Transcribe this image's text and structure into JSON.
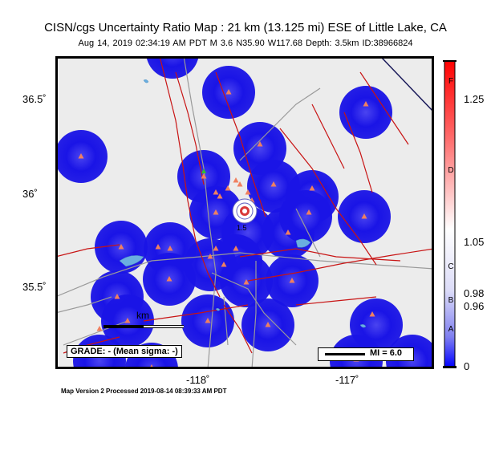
{
  "title": "CISN/cgs Uncertainty Ratio Map : 21 km (13.125 mi) ESE of Little Lake, CA",
  "subtitle": "Aug 14, 2019 02:34:19 AM PDT   M 3.6   N35.90 W117.68   Depth: 3.5km   ID:38966824",
  "footer": "Map Version 2 Processed 2019-08-14 08:39:33 AM PDT",
  "latitude_labels": [
    "36.5˚",
    "36˚",
    "35.5˚"
  ],
  "longitude_labels": [
    "-118˚",
    "-117˚"
  ],
  "colorbar": {
    "tick_labels": [
      "1.25",
      "1.05",
      "0.98",
      "0.96",
      "0"
    ],
    "grade_letters": [
      "F",
      "D",
      "C",
      "B",
      "A"
    ],
    "colors": {
      "top": "#ff0000",
      "mid": "#ffffff",
      "bottom": "#0000ff"
    }
  },
  "grade_label": "GRADE: - (Mean sigma: -)",
  "mi_legend": "MI = 6.0",
  "scale_label": "km",
  "contour_label": "1.5",
  "colors": {
    "land": "#ececec",
    "uncertainty_blue": "#1a14e6",
    "fault": "#c81414",
    "road": "#9a9a9a",
    "station": "#f08060",
    "water": "#6aaee0"
  }
}
